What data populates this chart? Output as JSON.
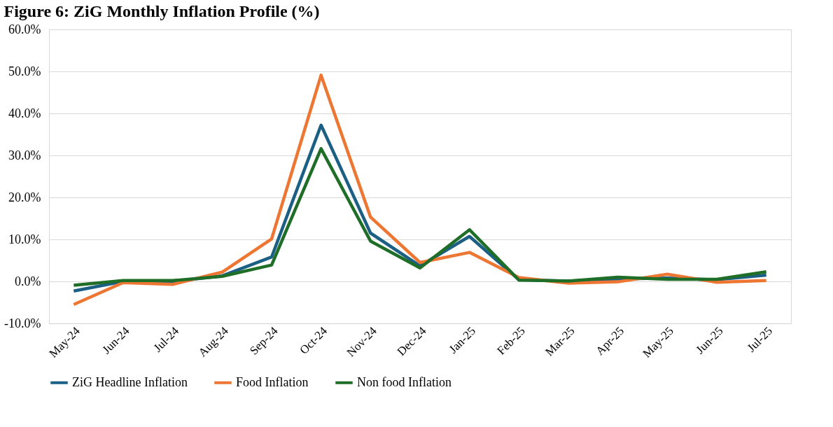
{
  "chart_data": {
    "type": "line",
    "title": "Figure 6: ZiG Monthly Inflation Profile (%)",
    "categories": [
      "May-24",
      "Jun-24",
      "Jul-24",
      "Aug-24",
      "Sep-24",
      "Oct-24",
      "Nov-24",
      "Dec-24",
      "Jan-25",
      "Feb-25",
      "Mar-25",
      "Apr-25",
      "May-25",
      "Jun-25",
      "Jul-25"
    ],
    "series": [
      {
        "name": "ZiG Headline Inflation",
        "color": "#1b5f85",
        "values": [
          -2.3,
          0.0,
          0.0,
          1.3,
          5.8,
          37.2,
          11.5,
          3.7,
          10.7,
          0.4,
          0.1,
          0.6,
          0.8,
          0.4,
          1.5
        ]
      },
      {
        "name": "Food Inflation",
        "color": "#ed7633",
        "values": [
          -5.5,
          -0.3,
          -0.7,
          2.2,
          10.1,
          49.1,
          15.3,
          4.5,
          6.9,
          0.9,
          -0.4,
          -0.1,
          1.7,
          -0.2,
          0.2
        ]
      },
      {
        "name": "Non food Inflation",
        "color": "#1e6e27",
        "values": [
          -0.9,
          0.2,
          0.2,
          1.2,
          3.9,
          31.6,
          9.6,
          3.2,
          12.3,
          0.3,
          0.1,
          1.0,
          0.5,
          0.5,
          2.3
        ]
      }
    ],
    "ylim": [
      -10,
      60
    ],
    "yticks": [
      {
        "value": -10,
        "label": "-10.0%"
      },
      {
        "value": 0,
        "label": "0.0%"
      },
      {
        "value": 10,
        "label": "10.0%"
      },
      {
        "value": 20,
        "label": "20.0%"
      },
      {
        "value": 30,
        "label": "30.0%"
      },
      {
        "value": 40,
        "label": "40.0%"
      },
      {
        "value": 50,
        "label": "50.0%"
      },
      {
        "value": 60,
        "label": "60.0%"
      }
    ],
    "grid": "y",
    "legend": "bottom",
    "marker": "none",
    "line_style": "solid"
  }
}
